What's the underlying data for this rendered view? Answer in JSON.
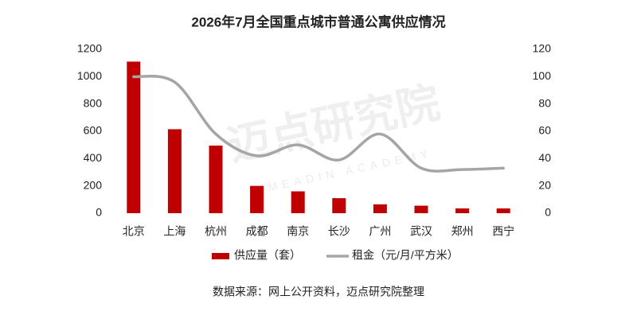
{
  "chart_data": {
    "type": "bar",
    "title": "2026年7月全国重点城市普通公寓供应情况",
    "categories": [
      "北京",
      "上海",
      "杭州",
      "成都",
      "南京",
      "长沙",
      "广州",
      "武汉",
      "郑州",
      "西宁"
    ],
    "series": [
      {
        "name": "供应量（套）",
        "type": "bar",
        "color": "#c00000",
        "values": [
          1110,
          615,
          495,
          200,
          160,
          110,
          65,
          55,
          35,
          35
        ]
      },
      {
        "name": "租金（元/月/平方米）",
        "type": "line",
        "axis": "y2",
        "color": "#a5a5a5",
        "values": [
          100,
          96,
          58,
          42,
          50,
          39,
          58,
          33,
          32,
          33
        ]
      }
    ],
    "ylim": [
      0,
      1200
    ],
    "yticks": [
      0,
      200,
      400,
      600,
      800,
      1000,
      1200
    ],
    "y2lim": [
      0,
      120
    ],
    "y2ticks": [
      0,
      20,
      40,
      60,
      80,
      100,
      120
    ],
    "legend": "bottom",
    "watermark": "迈点研究院",
    "watermark_sub": "MEADIN ACADEMY",
    "source": "数据来源：网上公开资料，迈点研究院整理"
  }
}
